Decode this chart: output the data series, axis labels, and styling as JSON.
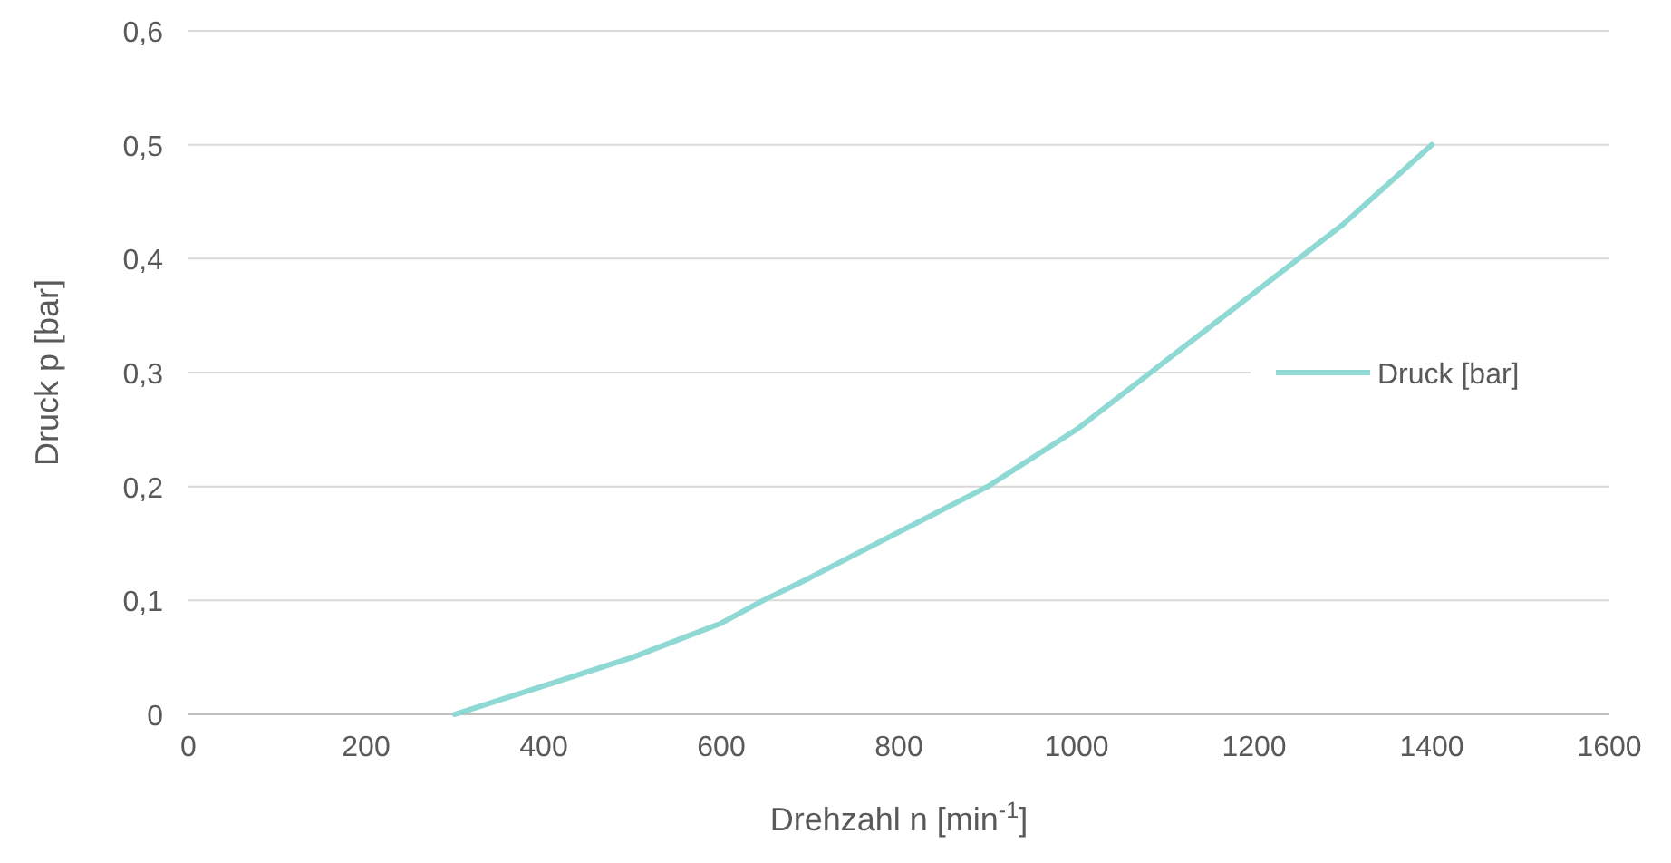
{
  "chart_data": {
    "type": "line",
    "xlabel": "Drehzahl n [min$^{-1}$]",
    "ylabel": "Druck p [bar]",
    "series": [
      {
        "name": "Druck [bar]",
        "color": "#8fd9d4",
        "x": [
          300,
          400,
          500,
          600,
          647,
          700,
          800,
          900,
          1000,
          1100,
          1200,
          1300,
          1400
        ],
        "values": [
          0,
          0.025,
          0.05,
          0.08,
          0.1,
          0.12,
          0.16,
          0.2,
          0.25,
          0.31,
          0.37,
          0.43,
          0.5
        ]
      }
    ],
    "xlim": [
      0,
      1600
    ],
    "xticks": [
      0,
      200,
      400,
      600,
      800,
      1000,
      1200,
      1400,
      1600
    ],
    "ylim": [
      0,
      0.6
    ],
    "yticks": [
      {
        "value": 0,
        "label": "0"
      },
      {
        "value": 0.1,
        "label": "0,1"
      },
      {
        "value": 0.2,
        "label": "0,2"
      },
      {
        "value": 0.3,
        "label": "0,3"
      },
      {
        "value": 0.4,
        "label": "0,4"
      },
      {
        "value": 0.5,
        "label": "0,5"
      },
      {
        "value": 0.6,
        "label": "0,6"
      }
    ],
    "grid": "y",
    "legend": "right",
    "marker": "none",
    "line_style": "solid"
  }
}
